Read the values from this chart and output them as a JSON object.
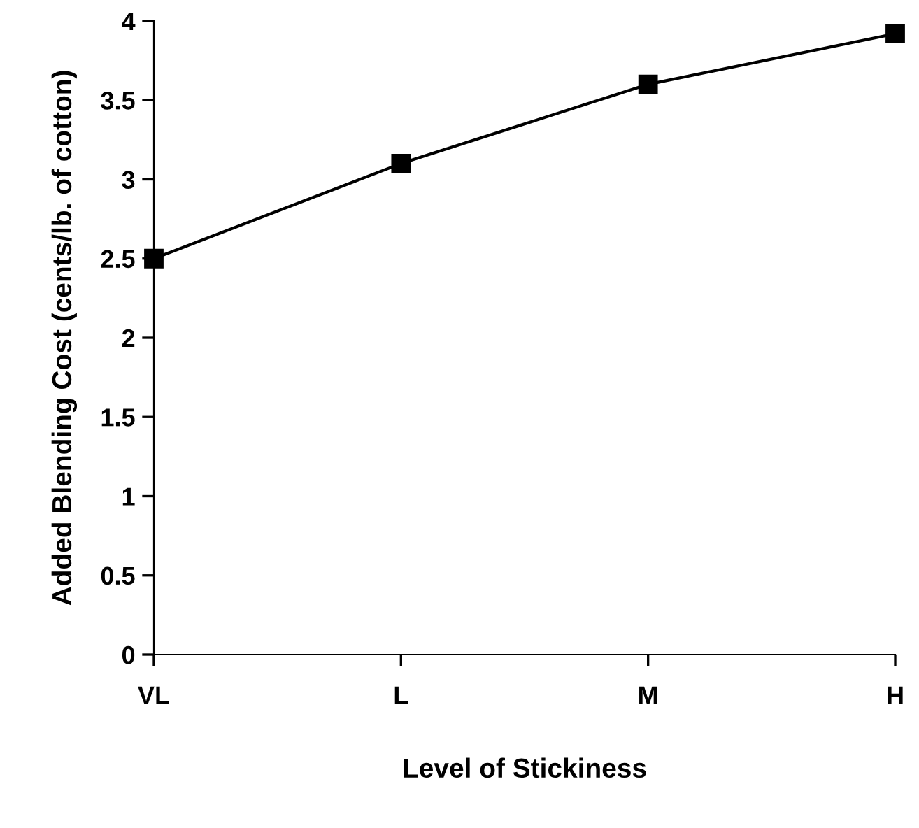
{
  "chart_data": {
    "type": "line",
    "xlabel": "Level of Stickiness",
    "ylabel": "Added Blending Cost (cents/lb. of cotton)",
    "categories": [
      "VL",
      "L",
      "M",
      "H"
    ],
    "values": [
      2.5,
      3.1,
      3.6,
      3.92
    ],
    "color": "#000000",
    "marker": "square",
    "line_style": "solid",
    "ylim": [
      0,
      4
    ],
    "yticks": [
      0,
      0.5,
      1,
      1.5,
      2,
      2.5,
      3,
      3.5,
      4
    ],
    "grid": false
  }
}
